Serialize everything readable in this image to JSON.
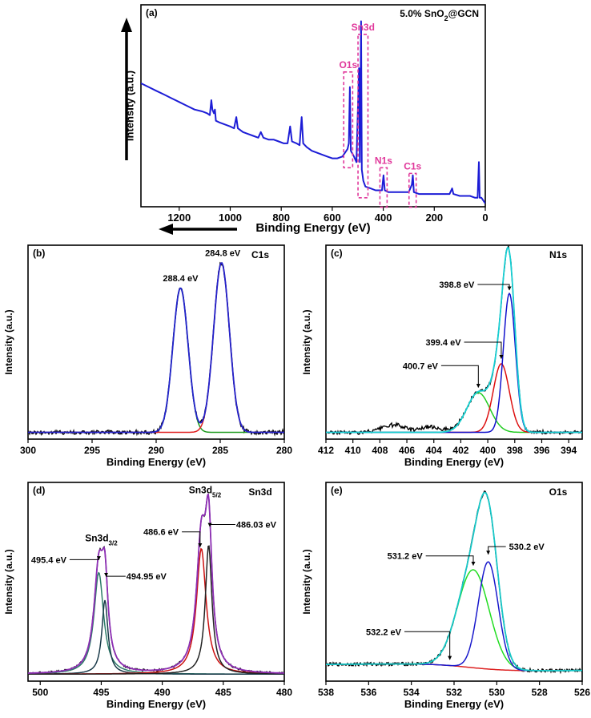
{
  "chart_data": [
    {
      "id": "a",
      "type": "line",
      "panel_label": "(a)",
      "title": "5.0% SnO2@GCN",
      "title_parts": [
        "5.0% SnO",
        "2",
        "@GCN"
      ],
      "xlabel": "Binding Energy (eV)",
      "ylabel": "Intensity (a.u.)",
      "xlim": [
        1350,
        0
      ],
      "ylim": [
        0,
        100
      ],
      "x_ticks": [
        1200,
        1000,
        800,
        600,
        400,
        200,
        0
      ],
      "series": [
        {
          "name": "survey",
          "color": "#1c1cd6",
          "points": [
            [
              1350,
              62
            ],
            [
              1320,
              60
            ],
            [
              1290,
              58
            ],
            [
              1260,
              56
            ],
            [
              1230,
              54
            ],
            [
              1200,
              52
            ],
            [
              1170,
              50
            ],
            [
              1140,
              48
            ],
            [
              1110,
              47
            ],
            [
              1090,
              46
            ],
            [
              1080,
              45
            ],
            [
              1074,
              53
            ],
            [
              1070,
              48
            ],
            [
              1064,
              46
            ],
            [
              1060,
              48
            ],
            [
              1056,
              42
            ],
            [
              1040,
              41
            ],
            [
              1020,
              40
            ],
            [
              1000,
              39
            ],
            [
              985,
              38
            ],
            [
              976,
              44
            ],
            [
              970,
              38
            ],
            [
              950,
              36
            ],
            [
              930,
              35
            ],
            [
              910,
              34
            ],
            [
              890,
              33
            ],
            [
              880,
              36
            ],
            [
              870,
              33
            ],
            [
              850,
              32
            ],
            [
              830,
              32
            ],
            [
              810,
              31
            ],
            [
              790,
              30
            ],
            [
              775,
              30
            ],
            [
              765,
              39
            ],
            [
              758,
              31
            ],
            [
              740,
              30
            ],
            [
              728,
              29
            ],
            [
              720,
              44
            ],
            [
              714,
              30
            ],
            [
              700,
              28
            ],
            [
              680,
              26
            ],
            [
              660,
              25
            ],
            [
              640,
              24
            ],
            [
              620,
              23
            ],
            [
              600,
              22
            ],
            [
              580,
              22
            ],
            [
              560,
              23
            ],
            [
              540,
              27
            ],
            [
              535,
              30
            ],
            [
              531,
              60
            ],
            [
              527,
              26
            ],
            [
              515,
              23
            ],
            [
              505,
              20
            ],
            [
              495,
              70
            ],
            [
              492,
              20
            ],
            [
              487,
              95
            ],
            [
              484,
              16
            ],
            [
              478,
              10
            ],
            [
              470,
              7
            ],
            [
              450,
              6
            ],
            [
              430,
              5
            ],
            [
              414,
              5
            ],
            [
              405,
              5
            ],
            [
              399,
              13
            ],
            [
              394,
              5
            ],
            [
              380,
              4
            ],
            [
              360,
              4
            ],
            [
              340,
              4
            ],
            [
              320,
              4
            ],
            [
              300,
              4
            ],
            [
              288,
              8
            ],
            [
              284,
              13
            ],
            [
              280,
              4
            ],
            [
              260,
              3
            ],
            [
              240,
              3
            ],
            [
              220,
              3
            ],
            [
              200,
              3
            ],
            [
              180,
              3
            ],
            [
              160,
              3
            ],
            [
              140,
              3
            ],
            [
              130,
              6
            ],
            [
              125,
              3
            ],
            [
              100,
              2
            ],
            [
              80,
              2
            ],
            [
              60,
              2
            ],
            [
              40,
              1
            ],
            [
              30,
              1
            ],
            [
              25,
              20
            ],
            [
              22,
              1
            ],
            [
              15,
              1
            ],
            [
              0,
              -2
            ]
          ]
        }
      ],
      "annotations": [
        {
          "label": "O1s",
          "x_from": 555,
          "x_to": 520,
          "y_from": 68,
          "y_to": 17
        },
        {
          "label": "Sn3d",
          "x_from": 499,
          "x_to": 460,
          "y_from": 88,
          "y_to": 1
        },
        {
          "label": "N1s",
          "x_from": 413,
          "x_to": 385,
          "y_from": 17,
          "y_to": -4
        },
        {
          "label": "C1s",
          "x_from": 299,
          "x_to": 271,
          "y_from": 14,
          "y_to": -4
        }
      ]
    },
    {
      "id": "b",
      "type": "line",
      "panel_label": "(b)",
      "title": "C1s",
      "xlabel": "Binding Energy (eV)",
      "ylabel": "Intensity (a.u.)",
      "xlim": [
        300,
        280
      ],
      "ylim": [
        0,
        100
      ],
      "x_ticks": [
        300,
        295,
        290,
        285,
        280
      ],
      "series": [
        {
          "name": "experimental",
          "color": "#000000",
          "type": "noisy-sum",
          "baseline": 6,
          "noise": 1.2
        },
        {
          "name": "peak 288.4 eV",
          "color": "#1f9b1f",
          "type": "gaussian",
          "center": 288.1,
          "height": 80,
          "fwhm": 1.4,
          "baseline": 0
        },
        {
          "name": "peak 284.8 eV",
          "color": "#e02020",
          "type": "gaussian",
          "center": 284.9,
          "height": 94,
          "fwhm": 1.45,
          "baseline": 0
        },
        {
          "name": "envelope",
          "color": "#2222cc",
          "type": "sum"
        }
      ],
      "annotations": [
        {
          "label": "288.4 eV",
          "x": 288.1,
          "y": 82
        },
        {
          "label": "284.8 eV",
          "x": 284.8,
          "y": 96
        }
      ]
    },
    {
      "id": "c",
      "type": "line",
      "panel_label": "(c)",
      "title": "N1s",
      "xlabel": "Binding Energy (eV)",
      "ylabel": "Intensity (a.u.)",
      "xlim": [
        412,
        393
      ],
      "ylim": [
        0,
        100
      ],
      "x_ticks": [
        412,
        410,
        408,
        406,
        404,
        402,
        400,
        398,
        396,
        394
      ],
      "series": [
        {
          "name": "experimental",
          "color": "#000000",
          "type": "noisy-sum",
          "baseline": 6,
          "noise": 1.0,
          "extra_bumps": [
            [
              407,
              4,
              2.0
            ],
            [
              404.2,
              3,
              2.0
            ]
          ]
        },
        {
          "name": "peak 400.7 eV",
          "color": "#22cc22",
          "type": "gaussian",
          "center": 400.7,
          "height": 22,
          "fwhm": 2.0,
          "baseline": 0
        },
        {
          "name": "peak 399.4 eV",
          "color": "#dd1111",
          "type": "gaussian",
          "center": 399.0,
          "height": 38,
          "fwhm": 1.4,
          "baseline": 0
        },
        {
          "name": "peak 398.8 eV",
          "color": "#1111cc",
          "type": "gaussian",
          "center": 398.4,
          "height": 77,
          "fwhm": 1.05,
          "baseline": 0
        },
        {
          "name": "envelope",
          "color": "#17cfd3",
          "type": "sum"
        }
      ],
      "annotations": [
        {
          "label": "398.8 eV",
          "x": 398.4,
          "y": 78,
          "text_x": 402.3,
          "text_y": 82
        },
        {
          "label": "399.4 eV",
          "x": 399.0,
          "y": 40,
          "text_x": 403.3,
          "text_y": 50
        },
        {
          "label": "400.7 eV",
          "x": 400.7,
          "y": 24,
          "text_x": 405.0,
          "text_y": 37
        }
      ]
    },
    {
      "id": "d",
      "type": "line",
      "panel_label": "(d)",
      "title": "Sn3d",
      "xlabel": "Binding Energy (eV)",
      "ylabel": "Intensity (a.u.)",
      "xlim": [
        501,
        480
      ],
      "ylim": [
        0,
        100
      ],
      "x_ticks": [
        500,
        495,
        490,
        485,
        480
      ],
      "series": [
        {
          "name": "experimental",
          "color": "#000000",
          "type": "noisy-sum",
          "baseline": 5,
          "noise": 0.4
        },
        {
          "name": "peak 495.4 eV",
          "color": "#2e7d6a",
          "type": "lorentzian",
          "center": 495.2,
          "height": 55,
          "fwhm": 0.95,
          "baseline": 0
        },
        {
          "name": "peak 494.95 eV",
          "color": "#1b3b4a",
          "type": "lorentzian",
          "center": 494.7,
          "height": 40,
          "fwhm": 0.6,
          "baseline": 0
        },
        {
          "name": "peak 486.6 eV",
          "color": "#cc1111",
          "type": "lorentzian",
          "center": 486.8,
          "height": 68,
          "fwhm": 0.95,
          "baseline": 0
        },
        {
          "name": "peak 486.03 eV",
          "color": "#222222",
          "type": "lorentzian",
          "center": 486.2,
          "height": 70,
          "fwhm": 0.65,
          "baseline": 0
        },
        {
          "name": "envelope",
          "color": "#8e2fb5",
          "type": "sum"
        }
      ],
      "annotations": [
        {
          "label": "Sn3d3/2",
          "main": "Sn3d",
          "sub": "3/2",
          "x": 495.0,
          "y": 72
        },
        {
          "label": "Sn3d5/2",
          "main": "Sn3d",
          "sub": "5/2",
          "x": 486.5,
          "y": 98
        },
        {
          "label": "495.4 eV",
          "x": 495.2,
          "y": 61,
          "text_x": 499.3,
          "text_y": 62
        },
        {
          "label": "494.95 eV",
          "x": 494.6,
          "y": 52,
          "text_x": 491.3,
          "text_y": 53
        },
        {
          "label": "486.6 eV",
          "x": 486.9,
          "y": 68,
          "text_x": 490.1,
          "text_y": 77
        },
        {
          "label": "486.03 eV",
          "x": 486.1,
          "y": 79,
          "text_x": 482.3,
          "text_y": 81
        }
      ]
    },
    {
      "id": "e",
      "type": "line",
      "panel_label": "(e)",
      "title": "O1s",
      "xlabel": "Binding Energy (eV)",
      "ylabel": "Intensity (a.u.)",
      "xlim": [
        538,
        526
      ],
      "ylim": [
        0,
        100
      ],
      "x_ticks": [
        538,
        536,
        534,
        532,
        530,
        528,
        526
      ],
      "series": [
        {
          "name": "experimental",
          "color": "#000000",
          "type": "noisy-sum",
          "baseline": 0,
          "noise": 0.9
        },
        {
          "name": "background",
          "color": "#dd2222",
          "type": "shirley",
          "baseline": 0
        },
        {
          "name": "peak 531.2 eV",
          "color": "#22dd22",
          "type": "gaussian",
          "center": 531.1,
          "height": 53,
          "fwhm": 1.75,
          "baseline": 0
        },
        {
          "name": "peak 530.2 eV",
          "color": "#1a1acc",
          "type": "gaussian",
          "center": 530.4,
          "height": 58,
          "fwhm": 1.1,
          "baseline": 0
        },
        {
          "name": "envelope",
          "color": "#18c8c8",
          "type": "sum"
        }
      ],
      "annotations": [
        {
          "label": "531.2 eV",
          "x": 531.1,
          "y": 58,
          "text_x": 534.3,
          "text_y": 64
        },
        {
          "label": "530.2 eV",
          "x": 530.4,
          "y": 64,
          "text_x": 528.6,
          "text_y": 69
        },
        {
          "label": "532.2 eV",
          "x": 532.2,
          "y": 7,
          "text_x": 535.3,
          "text_y": 23
        }
      ]
    }
  ]
}
